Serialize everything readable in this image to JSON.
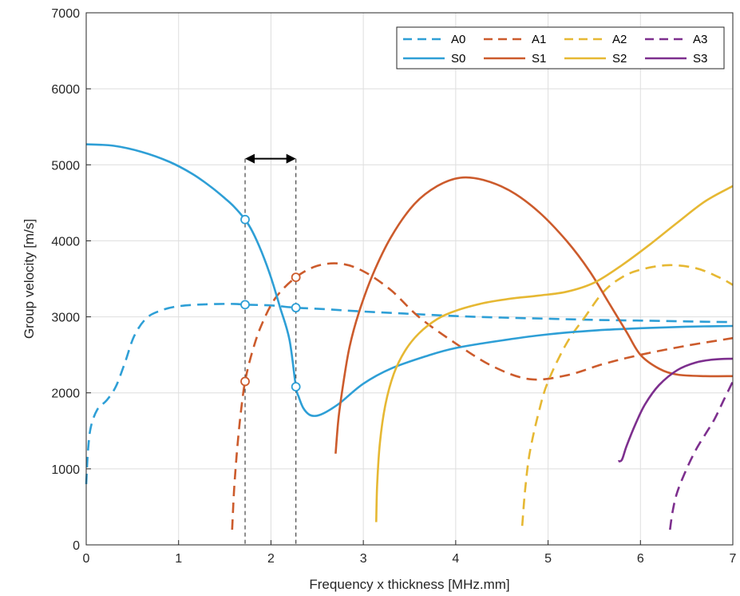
{
  "chart_data": {
    "type": "line",
    "title": "",
    "xlabel": "Frequency x thickness [MHz.mm]",
    "ylabel": "Group velocity [m/s]",
    "xlim": [
      0,
      7
    ],
    "ylim": [
      0,
      7000
    ],
    "xticks": [
      0,
      1,
      2,
      3,
      4,
      5,
      6,
      7
    ],
    "yticks": [
      0,
      1000,
      2000,
      3000,
      4000,
      5000,
      6000,
      7000
    ],
    "xtick_labels": [
      "0",
      "1",
      "2",
      "3",
      "4",
      "5",
      "6",
      "7"
    ],
    "ytick_labels": [
      "0",
      "1000",
      "2000",
      "3000",
      "4000",
      "5000",
      "6000",
      "7000"
    ],
    "grid": true,
    "legend_position": "top-right",
    "series": [
      {
        "name": "A0",
        "style": "dashed",
        "color": "#2e9fd6",
        "points": [
          [
            0,
            800
          ],
          [
            0.02,
            1250
          ],
          [
            0.05,
            1550
          ],
          [
            0.12,
            1780
          ],
          [
            0.22,
            1900
          ],
          [
            0.32,
            2080
          ],
          [
            0.42,
            2400
          ],
          [
            0.52,
            2750
          ],
          [
            0.65,
            2980
          ],
          [
            0.8,
            3080
          ],
          [
            1.0,
            3140
          ],
          [
            1.3,
            3165
          ],
          [
            1.6,
            3170
          ],
          [
            1.72,
            3160
          ],
          [
            2.0,
            3150
          ],
          [
            2.27,
            3120
          ],
          [
            2.6,
            3100
          ],
          [
            3.0,
            3070
          ],
          [
            3.5,
            3040
          ],
          [
            4.0,
            3010
          ],
          [
            4.5,
            2990
          ],
          [
            5.0,
            2975
          ],
          [
            5.5,
            2960
          ],
          [
            6.0,
            2950
          ],
          [
            6.5,
            2940
          ],
          [
            7.0,
            2930
          ]
        ]
      },
      {
        "name": "A1",
        "style": "dashed",
        "color": "#cc5b2c",
        "points": [
          [
            1.58,
            200
          ],
          [
            1.6,
            700
          ],
          [
            1.63,
            1200
          ],
          [
            1.67,
            1700
          ],
          [
            1.72,
            2150
          ],
          [
            1.8,
            2550
          ],
          [
            1.9,
            2900
          ],
          [
            2.05,
            3250
          ],
          [
            2.27,
            3520
          ],
          [
            2.5,
            3670
          ],
          [
            2.75,
            3700
          ],
          [
            3.0,
            3600
          ],
          [
            3.3,
            3350
          ],
          [
            3.6,
            3000
          ],
          [
            4.0,
            2650
          ],
          [
            4.4,
            2350
          ],
          [
            4.8,
            2180
          ],
          [
            5.2,
            2230
          ],
          [
            5.6,
            2380
          ],
          [
            6.0,
            2500
          ],
          [
            6.5,
            2620
          ],
          [
            7.0,
            2720
          ]
        ]
      },
      {
        "name": "A2",
        "style": "dashed",
        "color": "#e6b833",
        "points": [
          [
            4.72,
            250
          ],
          [
            4.75,
            700
          ],
          [
            4.8,
            1200
          ],
          [
            4.9,
            1750
          ],
          [
            5.0,
            2150
          ],
          [
            5.2,
            2650
          ],
          [
            5.4,
            3000
          ],
          [
            5.6,
            3330
          ],
          [
            5.8,
            3520
          ],
          [
            6.0,
            3620
          ],
          [
            6.3,
            3680
          ],
          [
            6.6,
            3640
          ],
          [
            6.85,
            3520
          ],
          [
            7.0,
            3420
          ]
        ]
      },
      {
        "name": "A3",
        "style": "dashed",
        "color": "#7d2f8e",
        "points": [
          [
            6.32,
            200
          ],
          [
            6.35,
            450
          ],
          [
            6.4,
            700
          ],
          [
            6.5,
            1000
          ],
          [
            6.6,
            1250
          ],
          [
            6.7,
            1450
          ],
          [
            6.8,
            1650
          ],
          [
            6.9,
            1900
          ],
          [
            7.0,
            2150
          ]
        ]
      },
      {
        "name": "S0",
        "style": "solid",
        "color": "#2e9fd6",
        "points": [
          [
            0,
            5270
          ],
          [
            0.3,
            5250
          ],
          [
            0.6,
            5170
          ],
          [
            0.9,
            5040
          ],
          [
            1.15,
            4880
          ],
          [
            1.35,
            4710
          ],
          [
            1.5,
            4560
          ],
          [
            1.6,
            4450
          ],
          [
            1.72,
            4280
          ],
          [
            1.8,
            4120
          ],
          [
            1.9,
            3850
          ],
          [
            2.0,
            3520
          ],
          [
            2.1,
            3120
          ],
          [
            2.2,
            2700
          ],
          [
            2.27,
            2080
          ],
          [
            2.3,
            1950
          ],
          [
            2.35,
            1800
          ],
          [
            2.42,
            1710
          ],
          [
            2.5,
            1700
          ],
          [
            2.6,
            1750
          ],
          [
            2.75,
            1870
          ],
          [
            3.0,
            2120
          ],
          [
            3.3,
            2320
          ],
          [
            3.7,
            2490
          ],
          [
            4.0,
            2590
          ],
          [
            4.5,
            2690
          ],
          [
            5.0,
            2770
          ],
          [
            5.5,
            2820
          ],
          [
            6.0,
            2850
          ],
          [
            6.5,
            2870
          ],
          [
            7.0,
            2880
          ]
        ]
      },
      {
        "name": "S1",
        "style": "solid",
        "color": "#cc5b2c",
        "points": [
          [
            2.7,
            1200
          ],
          [
            2.73,
            1650
          ],
          [
            2.78,
            2100
          ],
          [
            2.85,
            2600
          ],
          [
            2.95,
            3050
          ],
          [
            3.1,
            3550
          ],
          [
            3.3,
            4050
          ],
          [
            3.55,
            4480
          ],
          [
            3.8,
            4720
          ],
          [
            4.05,
            4830
          ],
          [
            4.3,
            4800
          ],
          [
            4.6,
            4650
          ],
          [
            4.9,
            4380
          ],
          [
            5.2,
            4000
          ],
          [
            5.45,
            3600
          ],
          [
            5.65,
            3200
          ],
          [
            5.85,
            2800
          ],
          [
            6.0,
            2500
          ],
          [
            6.2,
            2320
          ],
          [
            6.4,
            2240
          ],
          [
            6.7,
            2220
          ],
          [
            7.0,
            2220
          ]
        ]
      },
      {
        "name": "S2",
        "style": "solid",
        "color": "#e6b833",
        "points": [
          [
            3.14,
            300
          ],
          [
            3.15,
            800
          ],
          [
            3.18,
            1350
          ],
          [
            3.24,
            1850
          ],
          [
            3.33,
            2250
          ],
          [
            3.45,
            2550
          ],
          [
            3.6,
            2780
          ],
          [
            3.8,
            2970
          ],
          [
            4.0,
            3080
          ],
          [
            4.3,
            3180
          ],
          [
            4.6,
            3240
          ],
          [
            4.9,
            3280
          ],
          [
            5.2,
            3330
          ],
          [
            5.5,
            3450
          ],
          [
            5.8,
            3680
          ],
          [
            6.1,
            3950
          ],
          [
            6.4,
            4240
          ],
          [
            6.7,
            4520
          ],
          [
            7.0,
            4720
          ]
        ]
      },
      {
        "name": "S3",
        "style": "solid",
        "color": "#7d2f8e",
        "points": [
          [
            5.76,
            1100
          ],
          [
            5.8,
            1120
          ],
          [
            5.85,
            1300
          ],
          [
            5.95,
            1600
          ],
          [
            6.05,
            1850
          ],
          [
            6.2,
            2100
          ],
          [
            6.4,
            2300
          ],
          [
            6.6,
            2400
          ],
          [
            6.8,
            2440
          ],
          [
            7.0,
            2450
          ]
        ]
      }
    ],
    "annotations": {
      "vlines": [
        1.72,
        2.27
      ],
      "arrow": {
        "y": 5080,
        "x_from": 1.72,
        "x_to": 2.27
      },
      "markers": [
        {
          "x": 1.72,
          "y": 4280,
          "color": "#2e9fd6"
        },
        {
          "x": 1.72,
          "y": 3160,
          "color": "#2e9fd6"
        },
        {
          "x": 1.72,
          "y": 2150,
          "color": "#cc5b2c"
        },
        {
          "x": 2.27,
          "y": 3520,
          "color": "#cc5b2c"
        },
        {
          "x": 2.27,
          "y": 3120,
          "color": "#2e9fd6"
        },
        {
          "x": 2.27,
          "y": 2080,
          "color": "#2e9fd6"
        }
      ]
    },
    "legend": [
      {
        "label": "A0",
        "style": "dashed",
        "color": "#2e9fd6"
      },
      {
        "label": "A1",
        "style": "dashed",
        "color": "#cc5b2c"
      },
      {
        "label": "A2",
        "style": "dashed",
        "color": "#e6b833"
      },
      {
        "label": "A3",
        "style": "dashed",
        "color": "#7d2f8e"
      },
      {
        "label": "S0",
        "style": "solid",
        "color": "#2e9fd6"
      },
      {
        "label": "S1",
        "style": "solid",
        "color": "#cc5b2c"
      },
      {
        "label": "S2",
        "style": "solid",
        "color": "#e6b833"
      },
      {
        "label": "S3",
        "style": "solid",
        "color": "#7d2f8e"
      }
    ]
  }
}
